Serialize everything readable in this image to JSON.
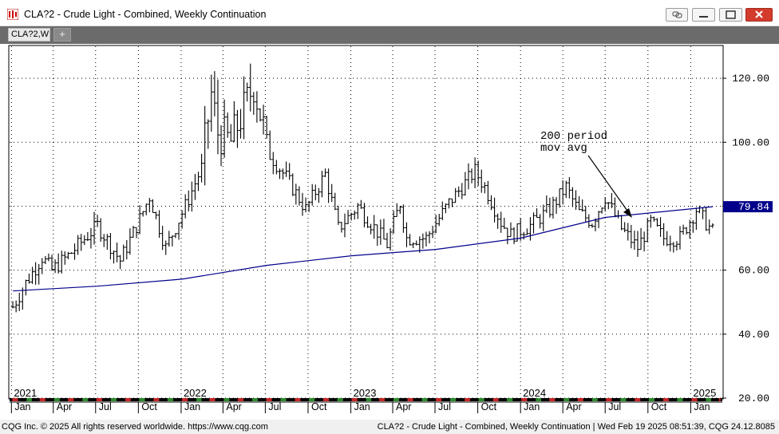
{
  "window": {
    "title": "CLA?2 - Crude Light - Combined, Weekly Continuation",
    "tab_label": "CLA?2,W",
    "add_tab_label": "+"
  },
  "status": {
    "left": "CQG Inc. © 2025 All rights reserved worldwide. https://www.cqg.com",
    "right": "CLA?2 - Crude Light - Combined, Weekly Continuation | Wed Feb 19 2025 08:51:39, CQG 24.12.8085"
  },
  "colors": {
    "bars": "#000000",
    "moving_average": "#00008b",
    "price_badge": "#00008b",
    "grid": "#000000"
  },
  "chart_data": {
    "type": "bar",
    "style": "OHLC weekly bars",
    "ylim": [
      20,
      130
    ],
    "yticks": [
      20,
      40,
      60,
      80,
      100,
      120
    ],
    "ytick_labels": [
      "20.00",
      "40.00",
      "60.00",
      "80.00",
      "100.00",
      "120.00"
    ],
    "y_axis_position": "right",
    "grid": "dotted",
    "years": [
      "2021",
      "2022",
      "2023",
      "2024",
      "2025"
    ],
    "month_labels": [
      "Jan",
      "Apr",
      "Jul",
      "Oct",
      "Jan",
      "Apr",
      "Jul",
      "Oct",
      "Jan",
      "Apr",
      "Jul",
      "Oct",
      "Jan",
      "Apr",
      "Jul",
      "Oct",
      "Jan"
    ],
    "last_price_label": "79.84",
    "annotation": {
      "text_line1": "200 period",
      "text_line2": "mov avg"
    },
    "price_anchors": [
      {
        "date": "2021-01-04",
        "value": 48.5
      },
      {
        "date": "2021-02-01",
        "value": 56
      },
      {
        "date": "2021-03-08",
        "value": 64
      },
      {
        "date": "2021-03-29",
        "value": 60
      },
      {
        "date": "2021-05-03",
        "value": 64.5
      },
      {
        "date": "2021-07-05",
        "value": 74
      },
      {
        "date": "2021-08-23",
        "value": 63
      },
      {
        "date": "2021-10-04",
        "value": 76
      },
      {
        "date": "2021-10-25",
        "value": 83
      },
      {
        "date": "2021-11-29",
        "value": 67
      },
      {
        "date": "2022-01-10",
        "value": 80
      },
      {
        "date": "2022-02-14",
        "value": 92
      },
      {
        "date": "2022-03-07",
        "value": 115
      },
      {
        "date": "2022-03-21",
        "value": 103
      },
      {
        "date": "2022-04-18",
        "value": 100
      },
      {
        "date": "2022-06-06",
        "value": 118
      },
      {
        "date": "2022-07-11",
        "value": 96
      },
      {
        "date": "2022-08-15",
        "value": 89
      },
      {
        "date": "2022-09-26",
        "value": 79
      },
      {
        "date": "2022-11-07",
        "value": 90
      },
      {
        "date": "2022-12-05",
        "value": 73
      },
      {
        "date": "2023-01-16",
        "value": 80
      },
      {
        "date": "2023-03-20",
        "value": 68
      },
      {
        "date": "2023-04-17",
        "value": 81
      },
      {
        "date": "2023-05-01",
        "value": 70
      },
      {
        "date": "2023-06-12",
        "value": 70
      },
      {
        "date": "2023-07-31",
        "value": 81
      },
      {
        "date": "2023-09-25",
        "value": 91
      },
      {
        "date": "2023-10-16",
        "value": 86
      },
      {
        "date": "2023-11-20",
        "value": 75
      },
      {
        "date": "2023-12-11",
        "value": 71
      },
      {
        "date": "2024-01-22",
        "value": 74
      },
      {
        "date": "2024-03-04",
        "value": 79
      },
      {
        "date": "2024-04-08",
        "value": 86
      },
      {
        "date": "2024-05-06",
        "value": 78
      },
      {
        "date": "2024-06-03",
        "value": 75
      },
      {
        "date": "2024-07-01",
        "value": 83
      },
      {
        "date": "2024-08-05",
        "value": 73
      },
      {
        "date": "2024-09-09",
        "value": 67
      },
      {
        "date": "2024-10-07",
        "value": 75
      },
      {
        "date": "2024-11-04",
        "value": 70
      },
      {
        "date": "2024-12-09",
        "value": 70
      },
      {
        "date": "2025-01-13",
        "value": 79
      },
      {
        "date": "2025-02-17",
        "value": 72
      }
    ],
    "moving_average": [
      {
        "date": "2021-01-04",
        "value": 53.5
      },
      {
        "date": "2021-07-05",
        "value": 55
      },
      {
        "date": "2022-01-03",
        "value": 57.2
      },
      {
        "date": "2022-07-04",
        "value": 61.5
      },
      {
        "date": "2023-01-02",
        "value": 64.5
      },
      {
        "date": "2023-07-03",
        "value": 66.5
      },
      {
        "date": "2024-01-01",
        "value": 70
      },
      {
        "date": "2024-07-01",
        "value": 76.5
      },
      {
        "date": "2025-02-17",
        "value": 79.84
      }
    ]
  }
}
